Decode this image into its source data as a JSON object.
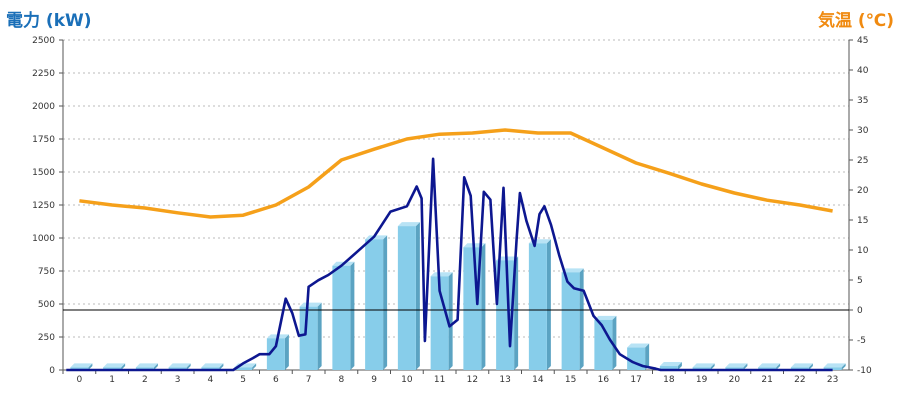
{
  "chart_data": {
    "type": "bar+line",
    "y_left_label": "電力 (kW)",
    "y_right_label": "気温 (℃)",
    "y_left_ticks": [
      0,
      250,
      500,
      750,
      1000,
      1250,
      1500,
      1750,
      2000,
      2250,
      2500
    ],
    "y_right_ticks": [
      -10,
      -5,
      0,
      5,
      10,
      15,
      20,
      25,
      30,
      35,
      40,
      45
    ],
    "ylim_left": [
      0,
      2500
    ],
    "ylim_right": [
      -10,
      45
    ],
    "categories": [
      "0",
      "1",
      "2",
      "3",
      "4",
      "5",
      "6",
      "7",
      "8",
      "9",
      "10",
      "11",
      "12",
      "13",
      "14",
      "15",
      "16",
      "17",
      "18",
      "19",
      "20",
      "21",
      "22",
      "23"
    ],
    "series": [
      {
        "kind": "bar",
        "axis": "left",
        "values": [
          20,
          20,
          20,
          20,
          20,
          20,
          240,
          480,
          790,
          990,
          1090,
          710,
          930,
          830,
          960,
          740,
          380,
          170,
          30,
          20,
          20,
          20,
          20,
          20
        ]
      },
      {
        "kind": "line",
        "axis": "left",
        "x": [
          -0.4,
          0,
          0.5,
          1,
          1.5,
          2,
          2.5,
          3,
          3.5,
          4,
          4.5,
          4.7,
          5,
          5.3,
          5.5,
          5.8,
          6,
          6.3,
          6.5,
          6.7,
          6.9,
          7.0,
          7.3,
          7.6,
          8,
          8.5,
          9,
          9.5,
          10,
          10.3,
          10.45,
          10.55,
          10.8,
          11,
          11.3,
          11.55,
          11.75,
          11.95,
          12.15,
          12.35,
          12.55,
          12.75,
          12.95,
          13.15,
          13.35,
          13.45,
          13.65,
          13.9,
          14.05,
          14.2,
          14.4,
          14.65,
          14.9,
          15.1,
          15.4,
          15.7,
          15.95,
          16.2,
          16.5,
          16.9,
          17.2,
          17.6,
          17.75,
          18,
          19,
          20,
          21,
          22,
          23
        ],
        "y": [
          0,
          0,
          0,
          0,
          0,
          0,
          0,
          0,
          0,
          0,
          0,
          0,
          50,
          90,
          120,
          120,
          180,
          540,
          430,
          260,
          270,
          630,
          680,
          720,
          790,
          900,
          1010,
          1200,
          1240,
          1390,
          1300,
          220,
          1600,
          600,
          330,
          380,
          1460,
          1320,
          500,
          1350,
          1290,
          500,
          1380,
          180,
          990,
          1340,
          1130,
          940,
          1180,
          1240,
          1100,
          870,
          670,
          620,
          600,
          410,
          340,
          230,
          120,
          60,
          30,
          10,
          0,
          0,
          0,
          0,
          0,
          0,
          0
        ]
      },
      {
        "kind": "line",
        "axis": "right",
        "x": [
          0,
          1,
          2,
          3,
          4,
          5,
          6,
          7,
          8,
          9,
          10,
          11,
          12,
          13,
          14,
          15,
          16,
          17,
          18,
          19,
          20,
          21,
          22,
          23
        ],
        "values": [
          18.2,
          17.5,
          17,
          16.2,
          15.5,
          15.8,
          17.5,
          20.5,
          25,
          26.8,
          28.5,
          29.3,
          29.5,
          30,
          29.5,
          29.5,
          27,
          24.5,
          22.8,
          21,
          19.5,
          18.3,
          17.5,
          16.5
        ]
      }
    ],
    "colors": {
      "bar_front": "#87cdea",
      "bar_side": "#5ba3c2",
      "bar_top": "#b8e3f5",
      "power_line": "#0d1790",
      "temp_line": "#f5a01a",
      "left_label": "#1a6fb8",
      "right_label": "#f08a10",
      "grid": "#bbbbbb"
    },
    "grid": true
  }
}
